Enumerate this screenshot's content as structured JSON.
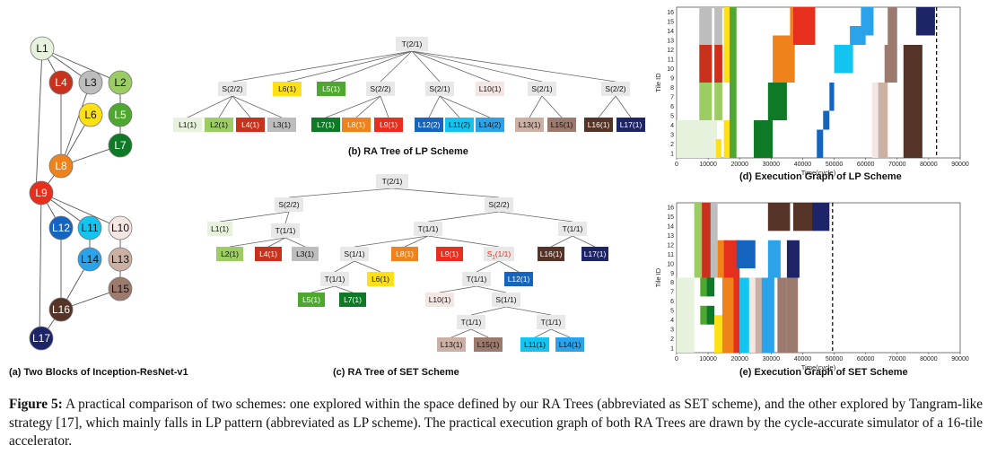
{
  "panels": {
    "a": {
      "caption": "(a) Two Blocks of Inception-ResNet-v1",
      "nodes": [
        {
          "id": "L1",
          "color": "#e6f2dc"
        },
        {
          "id": "L4",
          "color": "#c8321c"
        },
        {
          "id": "L3",
          "color": "#bdbdbd"
        },
        {
          "id": "L2",
          "color": "#9ccd63"
        },
        {
          "id": "L6",
          "color": "#ffe015"
        },
        {
          "id": "L5",
          "color": "#4ea82f"
        },
        {
          "id": "L7",
          "color": "#0e7a26"
        },
        {
          "id": "L8",
          "color": "#f0821c"
        },
        {
          "id": "L9",
          "color": "#e62f1c"
        },
        {
          "id": "L12",
          "color": "#1565c0"
        },
        {
          "id": "L11",
          "color": "#12c4ef"
        },
        {
          "id": "L10",
          "color": "#f4e6e2"
        },
        {
          "id": "L14",
          "color": "#2aa3ea"
        },
        {
          "id": "L13",
          "color": "#cdb0a4"
        },
        {
          "id": "L15",
          "color": "#9c7a6e"
        },
        {
          "id": "L16",
          "color": "#553326"
        },
        {
          "id": "L17",
          "color": "#1e2468"
        }
      ]
    },
    "b": {
      "caption": "(b) RA Tree of LP Scheme",
      "root": "T(2/1)",
      "level1": [
        "S(2/2)",
        "L6(1)",
        "L5(1)",
        "S(2/2)",
        "S(2/1)",
        "L10(1)",
        "S(2/1)",
        "S(2/2)"
      ],
      "leaves": [
        "L1(1)",
        "L2(1)",
        "L4(1)",
        "L3(1)",
        "L7(1)",
        "L8(1)",
        "L9(1)",
        "L12(2)",
        "L11(2)",
        "L14(2)",
        "L13(1)",
        "L15(1)",
        "L16(1)",
        "L17(1)"
      ]
    },
    "c": {
      "caption": "(c) RA Tree of SET Scheme",
      "labels": [
        "T(2/1)",
        "S(2/2)",
        "S(2/2)",
        "L1(1)",
        "T(1/1)",
        "T(1/1)",
        "T(1/1)",
        "L2(1)",
        "L4(1)",
        "L3(1)",
        "S(1/1)",
        "L8(1)",
        "L9(1)",
        "S",
        "1",
        "(1/1)",
        "L16(1)",
        "L17(1)",
        "T(1/1)",
        "L6(1)",
        "T(1/1)",
        "L12(1)",
        "L5(1)",
        "L7(1)",
        "L10(1)",
        "S(1/1)",
        "T(1/1)",
        "T(1/1)",
        "L13(1)",
        "L15(1)",
        "L11(1)",
        "L14(1)"
      ]
    },
    "d": {
      "caption": "(d) Execution Graph of LP Scheme",
      "ylabel": "Tile ID",
      "xlabel": "Time(cycle)",
      "yticks": [
        "16",
        "15",
        "14",
        "13",
        "12",
        "11",
        "10",
        "9",
        "8",
        "7",
        "6",
        "5",
        "4",
        "3",
        "2",
        "1"
      ],
      "xticks": [
        "0",
        "10000",
        "20000",
        "30000",
        "40000",
        "50000",
        "60000",
        "70000",
        "80000",
        "90000"
      ],
      "xlim": [
        0,
        90000
      ],
      "end_time": 82500
    },
    "e": {
      "caption": "(e) Execution Graph of SET Scheme",
      "ylabel": "Tile ID",
      "xlabel": "Time(cycle)",
      "yticks": [
        "16",
        "15",
        "14",
        "13",
        "12",
        "11",
        "10",
        "9",
        "8",
        "7",
        "6",
        "5",
        "4",
        "3",
        "2",
        "1"
      ],
      "xticks": [
        "0",
        "10000",
        "20000",
        "30000",
        "40000",
        "50000",
        "60000",
        "70000",
        "80000",
        "90000"
      ],
      "xlim": [
        0,
        90000
      ],
      "end_time": 49500
    }
  },
  "caption": {
    "label": "Figure 5:",
    "text": " A practical comparison of two schemes: one explored within the space defined by our RA Trees (abbreviated as SET scheme), and the other explored by Tangram-like strategy [17], which mainly falls in LP pattern (abbreviated as LP scheme). The practical execution graph of both RA Trees are drawn by the cycle-accurate simulator of a 16-tile accelerator."
  }
}
